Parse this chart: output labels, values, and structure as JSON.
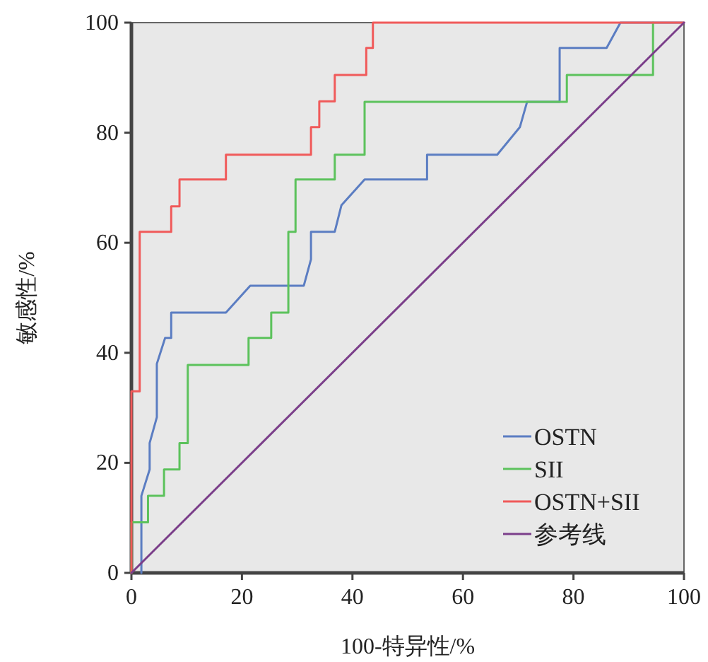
{
  "chart_data": {
    "type": "line",
    "xlabel": "100-特异性/%",
    "ylabel": "敏感性/%",
    "xlim": [
      0,
      100
    ],
    "ylim": [
      0,
      100
    ],
    "xticks": [
      0,
      20,
      40,
      60,
      80,
      100
    ],
    "yticks": [
      0,
      20,
      40,
      60,
      80,
      100
    ],
    "grid": false,
    "legend": "bottom right",
    "series": [
      {
        "name": "OSTN",
        "color": "#5b7dc2",
        "x": [
          1.8,
          1.8,
          3.3,
          3.3,
          4.6,
          4.6,
          6.1,
          7.2,
          7.2,
          17.1,
          21.5,
          31.2,
          32.5,
          32.5,
          36.8,
          38,
          42.2,
          53.5,
          53.5,
          66.2,
          70.3,
          71.6,
          77.5,
          77.5,
          86,
          88.5,
          100
        ],
        "values": [
          0,
          14,
          18.8,
          23.6,
          28.3,
          38,
          42.7,
          42.7,
          47.3,
          47.3,
          52.2,
          52.2,
          57,
          62,
          62,
          66.8,
          71.5,
          71.5,
          76,
          76,
          81,
          85.6,
          85.6,
          95.4,
          95.4,
          100,
          100
        ]
      },
      {
        "name": "SII",
        "color": "#5cc25c",
        "x": [
          0,
          0,
          3,
          3,
          5.9,
          5.9,
          8.7,
          8.7,
          10.2,
          10.2,
          21.2,
          21.2,
          25.3,
          25.3,
          28.4,
          28.4,
          29.7,
          29.7,
          36.8,
          36.8,
          42.2,
          42.2,
          78.8,
          78.8,
          94.4,
          94.4
        ],
        "values": [
          0,
          9.2,
          9.2,
          14,
          14,
          18.8,
          18.8,
          23.6,
          23.6,
          37.8,
          37.8,
          42.7,
          42.7,
          47.3,
          47.3,
          62,
          62,
          71.5,
          71.5,
          76,
          76,
          85.6,
          85.6,
          90.5,
          90.5,
          100
        ]
      },
      {
        "name": "OSTN+SII",
        "color": "#f05a5a",
        "x": [
          0,
          0,
          1.5,
          1.5,
          7.2,
          7.2,
          8.7,
          8.7,
          17.1,
          17.1,
          32.5,
          32.5,
          34,
          34,
          36.8,
          36.8,
          42.5,
          42.5,
          43.7,
          43.7,
          100
        ],
        "values": [
          0,
          33,
          33,
          62,
          62,
          66.6,
          66.6,
          71.5,
          71.5,
          76,
          76,
          81,
          81,
          85.7,
          85.7,
          90.5,
          90.5,
          95.4,
          95.4,
          100,
          100
        ]
      },
      {
        "name": "参考线",
        "color": "#7b3f8a",
        "x": [
          0,
          100
        ],
        "values": [
          0,
          100
        ]
      }
    ]
  }
}
